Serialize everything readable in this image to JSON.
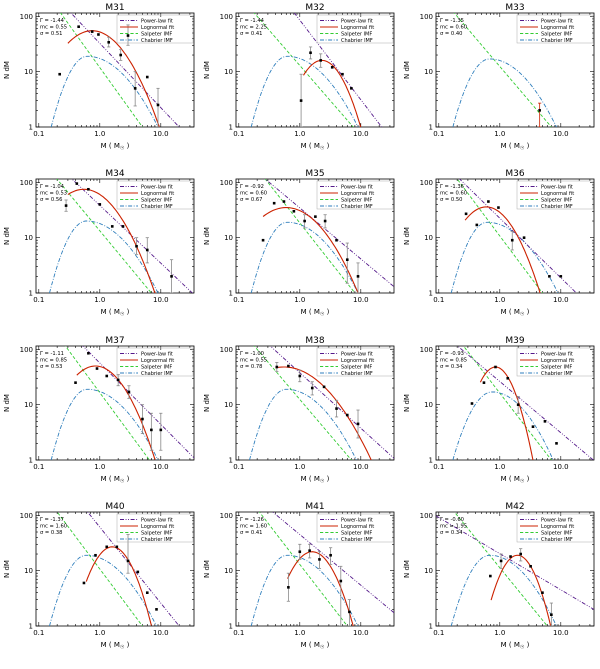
{
  "figure": {
    "background": "#ffffff"
  },
  "axes": {
    "xlabel": "M ( M☉ )",
    "ylabel": "N dM",
    "xticks": [
      "0.1",
      "1.0",
      "10.0"
    ],
    "xtick_values": [
      0.1,
      1.0,
      10.0
    ],
    "yticks": [
      "1",
      "10",
      "100"
    ],
    "ytick_values": [
      1,
      10,
      100
    ],
    "xlim": [
      0.09,
      35
    ],
    "ylim": [
      1,
      115
    ],
    "scale": "log-log",
    "grid": "off"
  },
  "legend": {
    "position": "top-right",
    "entries": [
      {
        "label": "Power-law fit",
        "color": "#551a8b",
        "dash": "4 1.6 0.9 1.6 0.9 1.6"
      },
      {
        "label": "Lognormal fit",
        "color": "#cc2200",
        "dash": ""
      },
      {
        "label": "Salpeter IMF",
        "color": "#33cc33",
        "dash": "3.2 2"
      },
      {
        "label": "Chabrier IMF",
        "color": "#2e7ebc",
        "dash": "4 1.6 0.9 1.6"
      }
    ]
  },
  "colors": {
    "powerlaw": "#551a8b",
    "lognormal": "#cc2200",
    "salpeter": "#33cc33",
    "chabrier": "#2e7ebc",
    "point": "#000000",
    "errorbar": "#888888",
    "errorbar_red": "#cc2200",
    "frame": "#000000"
  },
  "chart_data": [
    {
      "type": "scatter-line",
      "title": "M31",
      "params": [
        "Γ  = -1.44",
        "mc = 0.55",
        "σ  = 0.51"
      ],
      "powerlaw": [
        [
          0.38,
          100
        ],
        [
          20,
          1
        ]
      ],
      "salpeter": [
        [
          0.25,
          100
        ],
        [
          5,
          1
        ]
      ],
      "lognormal": {
        "mp": 0.75,
        "np": 55,
        "s": 0.59,
        "x0": 0.3,
        "x1": 10
      },
      "chabrier": {
        "mp": 0.62,
        "np": 19,
        "x0": 0.16,
        "x1": 9
      },
      "points": [
        [
          0.22,
          9
        ],
        [
          0.45,
          65
        ],
        [
          0.75,
          53
        ],
        [
          0.95,
          47
        ],
        [
          1.4,
          34,
          28,
          42
        ],
        [
          2.2,
          20,
          16,
          25
        ],
        [
          2.9,
          45,
          30,
          70
        ],
        [
          3.8,
          5,
          2.4,
          10
        ],
        [
          6,
          8
        ],
        [
          9,
          2.5,
          1,
          5
        ]
      ]
    },
    {
      "type": "scatter-line",
      "title": "M32",
      "params": [
        "Γ  = -1.44",
        "mc = 2.25",
        "σ  = 0.41"
      ],
      "powerlaw": [
        [
          1.25,
          62
        ],
        [
          22,
          1
        ]
      ],
      "salpeter": [
        [
          0.2,
          100
        ],
        [
          7.5,
          1
        ]
      ],
      "lognormal": {
        "mp": 2.3,
        "np": 16,
        "s": 0.41,
        "x0": 1.15,
        "x1": 11
      },
      "chabrier": {
        "mp": 0.62,
        "np": 19,
        "x0": 0.16,
        "x1": 9
      },
      "points": [
        [
          1.05,
          3,
          1,
          9
        ],
        [
          1.5,
          22,
          17,
          28
        ],
        [
          2.2,
          16,
          12,
          21
        ],
        [
          3.4,
          12
        ],
        [
          5,
          9
        ],
        [
          7,
          5
        ]
      ]
    },
    {
      "type": "scatter-line",
      "title": "M33",
      "params": [
        "Γ  = -1.35",
        "mc = 0.60",
        "σ  = 0.40"
      ],
      "powerlaw": null,
      "salpeter": [
        [
          0.2,
          100
        ],
        [
          7,
          1
        ]
      ],
      "lognormal": null,
      "chabrier": {
        "mp": 0.68,
        "np": 17,
        "x0": 0.17,
        "x1": 8.5
      },
      "points": [
        [
          4.5,
          2,
          1,
          2.7,
          "r"
        ]
      ]
    },
    {
      "type": "scatter-line",
      "title": "M34",
      "params": [
        "Γ  = -1.04",
        "mc = 0.53",
        "σ  = 0.56"
      ],
      "powerlaw": [
        [
          0.42,
          95
        ],
        [
          30,
          1.1
        ]
      ],
      "salpeter": [
        [
          0.22,
          100
        ],
        [
          7,
          1
        ]
      ],
      "lognormal": {
        "mp": 0.55,
        "np": 75,
        "s": 0.6,
        "x0": 0.3,
        "x1": 8.5
      },
      "chabrier": {
        "mp": 0.6,
        "np": 20,
        "x0": 0.15,
        "x1": 9
      },
      "points": [
        [
          0.28,
          38,
          30,
          48
        ],
        [
          0.42,
          95
        ],
        [
          0.65,
          75
        ],
        [
          1.0,
          40
        ],
        [
          1.6,
          16
        ],
        [
          2.4,
          16
        ],
        [
          4,
          7,
          5,
          10
        ],
        [
          6,
          6,
          3.5,
          10
        ],
        [
          15,
          2,
          1,
          4
        ]
      ]
    },
    {
      "type": "scatter-line",
      "title": "M35",
      "params": [
        "Γ  = -0.92",
        "mc = 0.60",
        "σ  = 0.67"
      ],
      "powerlaw": [
        [
          0.55,
          60
        ],
        [
          30,
          1.5
        ]
      ],
      "salpeter": [
        [
          0.3,
          100
        ],
        [
          8,
          1
        ]
      ],
      "lognormal": {
        "mp": 0.6,
        "np": 35,
        "s": 0.67,
        "x0": 0.25,
        "x1": 9.5
      },
      "chabrier": {
        "mp": 0.62,
        "np": 19,
        "x0": 0.16,
        "x1": 9
      },
      "points": [
        [
          0.25,
          9
        ],
        [
          0.38,
          42
        ],
        [
          0.55,
          45
        ],
        [
          0.8,
          30
        ],
        [
          1.2,
          20,
          15,
          26
        ],
        [
          1.8,
          24
        ],
        [
          2.6,
          20,
          15,
          26
        ],
        [
          4,
          9
        ],
        [
          6,
          4,
          1.5,
          8
        ],
        [
          9,
          2,
          1,
          3.5
        ]
      ]
    },
    {
      "type": "scatter-line",
      "title": "M36",
      "params": [
        "Γ  = -1.36",
        "mc = 0.60",
        "σ  = 0.50"
      ],
      "powerlaw": [
        [
          0.25,
          100
        ],
        [
          18,
          1
        ]
      ],
      "salpeter": [
        [
          0.22,
          100
        ],
        [
          5,
          1
        ]
      ],
      "lognormal": {
        "mp": 0.6,
        "np": 36,
        "s": 0.5,
        "x0": 0.27,
        "x1": 4.6
      },
      "chabrier": {
        "mp": 0.62,
        "np": 19,
        "x0": 0.16,
        "x1": 9
      },
      "points": [
        [
          0.28,
          27
        ],
        [
          0.42,
          17
        ],
        [
          0.65,
          45
        ],
        [
          0.95,
          35
        ],
        [
          1.6,
          9,
          6,
          13
        ],
        [
          2.5,
          10
        ],
        [
          6.5,
          2
        ],
        [
          10,
          2
        ]
      ]
    },
    {
      "type": "scatter-line",
      "title": "M37",
      "params": [
        "Γ  = -1.11",
        "mc = 0.85",
        "σ  = 0.53"
      ],
      "powerlaw": [
        [
          0.6,
          100
        ],
        [
          30,
          1.3
        ]
      ],
      "salpeter": [
        [
          0.3,
          100
        ],
        [
          6.5,
          1
        ]
      ],
      "lognormal": {
        "mp": 0.85,
        "np": 50,
        "s": 0.53,
        "x0": 0.42,
        "x1": 8
      },
      "chabrier": {
        "mp": 0.62,
        "np": 19,
        "x0": 0.16,
        "x1": 9
      },
      "points": [
        [
          0.4,
          25
        ],
        [
          0.65,
          85
        ],
        [
          0.9,
          45
        ],
        [
          1.3,
          33
        ],
        [
          2,
          28,
          22,
          35
        ],
        [
          3,
          17,
          13,
          22
        ],
        [
          5,
          5.5,
          3,
          10
        ],
        [
          7,
          3.5,
          1.5,
          7
        ],
        [
          10,
          3.5,
          1.5,
          7
        ]
      ]
    },
    {
      "type": "scatter-line",
      "title": "M38",
      "params": [
        "Γ  = -1.00",
        "mc = 0.55",
        "σ  = 0.78"
      ],
      "powerlaw": [
        [
          0.65,
          58
        ],
        [
          25,
          1.5
        ]
      ],
      "salpeter": [
        [
          0.2,
          100
        ],
        [
          7,
          1
        ]
      ],
      "lognormal": {
        "mp": 0.55,
        "np": 48,
        "s": 0.78,
        "x0": 0.4,
        "x1": 16
      },
      "chabrier": {
        "mp": 0.6,
        "np": 19,
        "x0": 0.15,
        "x1": 8.5
      },
      "points": [
        [
          0.42,
          48,
          40,
          58
        ],
        [
          0.65,
          50
        ],
        [
          1.0,
          33,
          26,
          42
        ],
        [
          1.6,
          20,
          15,
          26
        ],
        [
          2.5,
          21
        ],
        [
          4,
          8.5,
          6,
          12
        ],
        [
          6,
          6.5
        ],
        [
          9,
          4.5,
          2.5,
          8
        ]
      ]
    },
    {
      "type": "scatter-line",
      "title": "M39",
      "params": [
        "Γ  = -0.93",
        "mc = 0.85",
        "σ  = 0.34"
      ],
      "powerlaw": [
        [
          0.45,
          55
        ],
        [
          28,
          1.2
        ]
      ],
      "salpeter": [
        [
          0.28,
          100
        ],
        [
          7,
          1
        ]
      ],
      "lognormal": {
        "mp": 0.85,
        "np": 48,
        "s": 0.335,
        "x0": 0.48,
        "x1": 3.6
      },
      "chabrier": {
        "mp": 0.75,
        "np": 17,
        "x0": 0.17,
        "x1": 7.5
      },
      "points": [
        [
          0.35,
          10.5
        ],
        [
          0.55,
          25
        ],
        [
          0.85,
          48
        ],
        [
          1.35,
          30
        ],
        [
          2,
          10,
          7,
          14
        ],
        [
          3.5,
          4
        ],
        [
          5.5,
          5
        ],
        [
          8.5,
          2
        ]
      ]
    },
    {
      "type": "scatter-line",
      "title": "M40",
      "params": [
        "Γ  = -1.37",
        "mc = 1.60",
        "σ  = 0.38"
      ],
      "powerlaw": [
        [
          0.7,
          100
        ],
        [
          20,
          1
        ]
      ],
      "salpeter": [
        [
          0.22,
          100
        ],
        [
          5,
          1
        ]
      ],
      "lognormal": {
        "mp": 1.6,
        "np": 27,
        "s": 0.38,
        "x0": 0.6,
        "x1": 7
      },
      "chabrier": {
        "mp": 0.6,
        "np": 19,
        "x0": 0.15,
        "x1": 8.5
      },
      "points": [
        [
          0.55,
          6
        ],
        [
          0.85,
          19
        ],
        [
          1.3,
          27
        ],
        [
          1.9,
          27
        ],
        [
          2.9,
          15,
          9,
          45
        ],
        [
          4.2,
          9.5
        ],
        [
          6,
          4
        ],
        [
          8.5,
          2
        ]
      ]
    },
    {
      "type": "scatter-line",
      "title": "M41",
      "params": [
        "Γ  = -1.26",
        "mc = 1.60",
        "σ  = 0.41"
      ],
      "powerlaw": [
        [
          0.5,
          85
        ],
        [
          30,
          2
        ]
      ],
      "salpeter": [
        [
          0.24,
          100
        ],
        [
          6,
          1
        ]
      ],
      "lognormal": {
        "mp": 1.6,
        "np": 22,
        "s": 0.41,
        "x0": 0.63,
        "x1": 7.8
      },
      "chabrier": {
        "mp": 0.62,
        "np": 19,
        "x0": 0.16,
        "x1": 9
      },
      "points": [
        [
          0.65,
          5,
          2.8,
          9
        ],
        [
          1.0,
          22,
          16,
          30
        ],
        [
          1.45,
          23,
          17,
          30
        ],
        [
          2.1,
          16,
          11,
          22
        ],
        [
          3.2,
          19,
          13,
          26
        ],
        [
          4.7,
          6.5,
          1,
          12
        ],
        [
          6.5,
          1.8,
          1,
          3
        ]
      ]
    },
    {
      "type": "scatter-line",
      "title": "M42",
      "params": [
        "Γ  = -0.60",
        "mc = 1.95",
        "σ  = 0.34"
      ],
      "powerlaw": [
        [
          0.55,
          30
        ],
        [
          30,
          2.2
        ]
      ],
      "salpeter": [
        [
          0.2,
          100
        ],
        [
          6,
          1
        ]
      ],
      "lognormal": {
        "mp": 1.95,
        "np": 19,
        "s": 0.34,
        "x0": 0.72,
        "x1": 7.5
      },
      "chabrier": {
        "mp": 0.68,
        "np": 19,
        "x0": 0.16,
        "x1": 8.5
      },
      "points": [
        [
          0.7,
          8
        ],
        [
          1.05,
          15,
          11,
          20
        ],
        [
          1.5,
          18
        ],
        [
          2.2,
          20,
          15,
          25
        ],
        [
          3.2,
          12
        ],
        [
          5,
          4
        ],
        [
          7,
          1.6,
          1,
          2.6
        ]
      ]
    }
  ]
}
